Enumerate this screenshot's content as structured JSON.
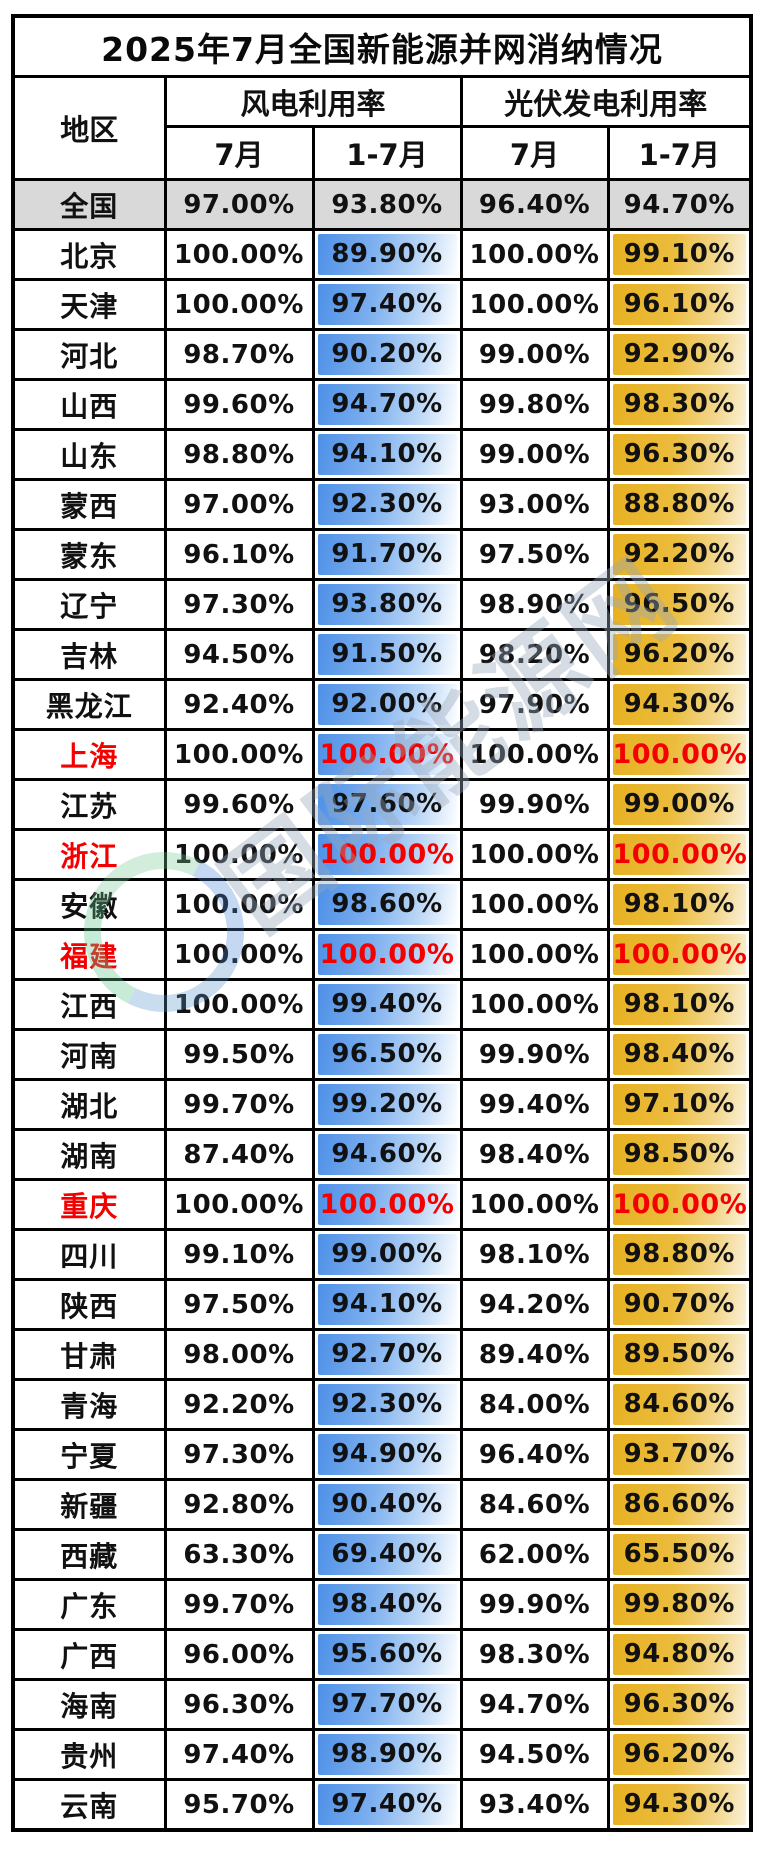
{
  "title": "2025年7月全国新能源并网消纳情况",
  "columns": {
    "region": "地区",
    "wind_group": "风电利用率",
    "solar_group": "光伏发电利用率",
    "wind_july": "7月",
    "wind_cumulative": "1-7月",
    "solar_july": "7月",
    "solar_cumulative": "1-7月"
  },
  "watermark": {
    "text": "国际能源网"
  },
  "colors": {
    "blue_highlight_start": "#4E90E7",
    "blue_highlight_end": "#FDFEFF",
    "gold_highlight_start": "#E7B021",
    "gold_highlight_end": "#FAF1D8",
    "red_text": "#F40000",
    "national_row_bg": "#D9D9D9",
    "border": "#000000"
  },
  "chart_data": {
    "type": "table",
    "title": "2025年7月全国新能源并网消纳情况",
    "columns": [
      "地区",
      "风电利用率 7月",
      "风电利用率 1-7月",
      "光伏发电利用率 7月",
      "光伏发电利用率 1-7月"
    ],
    "rows": [
      {
        "region": "全国",
        "wind_jul": "97.00%",
        "wind_ytd": "93.80%",
        "solar_jul": "96.40%",
        "solar_ytd": "94.70%",
        "style": "national"
      },
      {
        "region": "北京",
        "wind_jul": "100.00%",
        "wind_ytd": "89.90%",
        "solar_jul": "100.00%",
        "solar_ytd": "99.10%",
        "style": "normal"
      },
      {
        "region": "天津",
        "wind_jul": "100.00%",
        "wind_ytd": "97.40%",
        "solar_jul": "100.00%",
        "solar_ytd": "96.10%",
        "style": "normal"
      },
      {
        "region": "河北",
        "wind_jul": "98.70%",
        "wind_ytd": "90.20%",
        "solar_jul": "99.00%",
        "solar_ytd": "92.90%",
        "style": "normal"
      },
      {
        "region": "山西",
        "wind_jul": "99.60%",
        "wind_ytd": "94.70%",
        "solar_jul": "99.80%",
        "solar_ytd": "98.30%",
        "style": "normal"
      },
      {
        "region": "山东",
        "wind_jul": "98.80%",
        "wind_ytd": "94.10%",
        "solar_jul": "99.00%",
        "solar_ytd": "96.30%",
        "style": "normal"
      },
      {
        "region": "蒙西",
        "wind_jul": "97.00%",
        "wind_ytd": "92.30%",
        "solar_jul": "93.00%",
        "solar_ytd": "88.80%",
        "style": "normal"
      },
      {
        "region": "蒙东",
        "wind_jul": "96.10%",
        "wind_ytd": "91.70%",
        "solar_jul": "97.50%",
        "solar_ytd": "92.20%",
        "style": "normal"
      },
      {
        "region": "辽宁",
        "wind_jul": "97.30%",
        "wind_ytd": "93.80%",
        "solar_jul": "98.90%",
        "solar_ytd": "96.50%",
        "style": "normal"
      },
      {
        "region": "吉林",
        "wind_jul": "94.50%",
        "wind_ytd": "91.50%",
        "solar_jul": "98.20%",
        "solar_ytd": "96.20%",
        "style": "normal"
      },
      {
        "region": "黑龙江",
        "wind_jul": "92.40%",
        "wind_ytd": "92.00%",
        "solar_jul": "97.90%",
        "solar_ytd": "94.30%",
        "style": "normal"
      },
      {
        "region": "上海",
        "wind_jul": "100.00%",
        "wind_ytd": "100.00%",
        "solar_jul": "100.00%",
        "solar_ytd": "100.00%",
        "style": "red"
      },
      {
        "region": "江苏",
        "wind_jul": "99.60%",
        "wind_ytd": "97.60%",
        "solar_jul": "99.90%",
        "solar_ytd": "99.00%",
        "style": "normal"
      },
      {
        "region": "浙江",
        "wind_jul": "100.00%",
        "wind_ytd": "100.00%",
        "solar_jul": "100.00%",
        "solar_ytd": "100.00%",
        "style": "red"
      },
      {
        "region": "安徽",
        "wind_jul": "100.00%",
        "wind_ytd": "98.60%",
        "solar_jul": "100.00%",
        "solar_ytd": "98.10%",
        "style": "normal"
      },
      {
        "region": "福建",
        "wind_jul": "100.00%",
        "wind_ytd": "100.00%",
        "solar_jul": "100.00%",
        "solar_ytd": "100.00%",
        "style": "red"
      },
      {
        "region": "江西",
        "wind_jul": "100.00%",
        "wind_ytd": "99.40%",
        "solar_jul": "100.00%",
        "solar_ytd": "98.10%",
        "style": "normal"
      },
      {
        "region": "河南",
        "wind_jul": "99.50%",
        "wind_ytd": "96.50%",
        "solar_jul": "99.90%",
        "solar_ytd": "98.40%",
        "style": "normal"
      },
      {
        "region": "湖北",
        "wind_jul": "99.70%",
        "wind_ytd": "99.20%",
        "solar_jul": "99.40%",
        "solar_ytd": "97.10%",
        "style": "normal"
      },
      {
        "region": "湖南",
        "wind_jul": "87.40%",
        "wind_ytd": "94.60%",
        "solar_jul": "98.40%",
        "solar_ytd": "98.50%",
        "style": "normal"
      },
      {
        "region": "重庆",
        "wind_jul": "100.00%",
        "wind_ytd": "100.00%",
        "solar_jul": "100.00%",
        "solar_ytd": "100.00%",
        "style": "red"
      },
      {
        "region": "四川",
        "wind_jul": "99.10%",
        "wind_ytd": "99.00%",
        "solar_jul": "98.10%",
        "solar_ytd": "98.80%",
        "style": "normal"
      },
      {
        "region": "陕西",
        "wind_jul": "97.50%",
        "wind_ytd": "94.10%",
        "solar_jul": "94.20%",
        "solar_ytd": "90.70%",
        "style": "normal"
      },
      {
        "region": "甘肃",
        "wind_jul": "98.00%",
        "wind_ytd": "92.70%",
        "solar_jul": "89.40%",
        "solar_ytd": "89.50%",
        "style": "normal"
      },
      {
        "region": "青海",
        "wind_jul": "92.20%",
        "wind_ytd": "92.30%",
        "solar_jul": "84.00%",
        "solar_ytd": "84.60%",
        "style": "normal"
      },
      {
        "region": "宁夏",
        "wind_jul": "97.30%",
        "wind_ytd": "94.90%",
        "solar_jul": "96.40%",
        "solar_ytd": "93.70%",
        "style": "normal"
      },
      {
        "region": "新疆",
        "wind_jul": "92.80%",
        "wind_ytd": "90.40%",
        "solar_jul": "84.60%",
        "solar_ytd": "86.60%",
        "style": "normal"
      },
      {
        "region": "西藏",
        "wind_jul": "63.30%",
        "wind_ytd": "69.40%",
        "solar_jul": "62.00%",
        "solar_ytd": "65.50%",
        "style": "normal"
      },
      {
        "region": "广东",
        "wind_jul": "99.70%",
        "wind_ytd": "98.40%",
        "solar_jul": "99.90%",
        "solar_ytd": "99.80%",
        "style": "normal"
      },
      {
        "region": "广西",
        "wind_jul": "96.00%",
        "wind_ytd": "95.60%",
        "solar_jul": "98.30%",
        "solar_ytd": "94.80%",
        "style": "normal"
      },
      {
        "region": "海南",
        "wind_jul": "96.30%",
        "wind_ytd": "97.70%",
        "solar_jul": "94.70%",
        "solar_ytd": "96.30%",
        "style": "normal"
      },
      {
        "region": "贵州",
        "wind_jul": "97.40%",
        "wind_ytd": "98.90%",
        "solar_jul": "94.50%",
        "solar_ytd": "96.20%",
        "style": "normal"
      },
      {
        "region": "云南",
        "wind_jul": "95.70%",
        "wind_ytd": "97.40%",
        "solar_jul": "93.40%",
        "solar_ytd": "94.30%",
        "style": "normal"
      }
    ]
  }
}
